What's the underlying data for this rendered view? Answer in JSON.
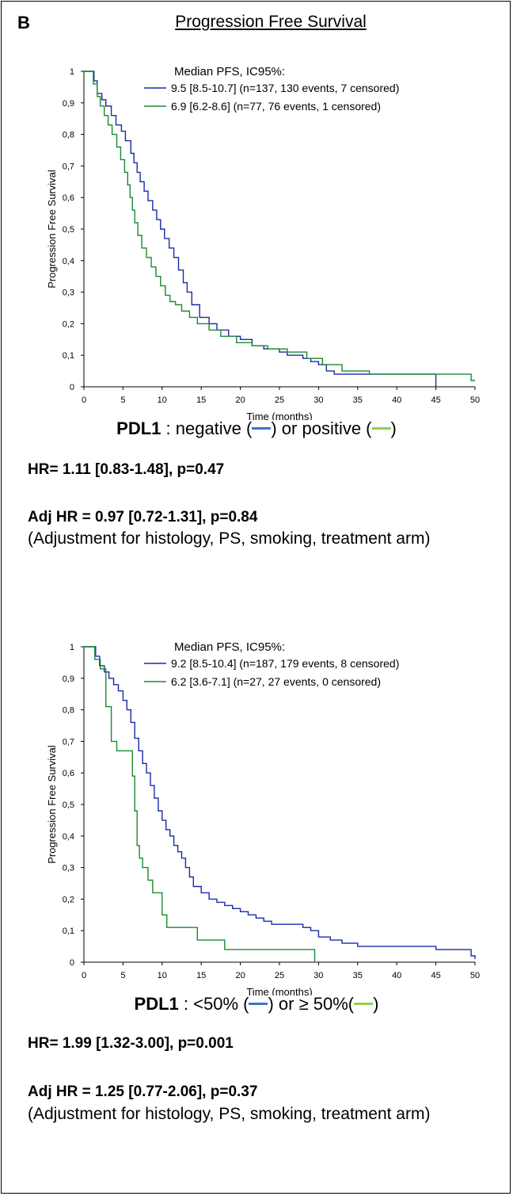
{
  "panel_letter": "B",
  "title": "Progression Free Survival",
  "chart_data": [
    {
      "type": "line",
      "legend_title": "Median PFS, IC95%:",
      "xlabel": "Time (months)",
      "ylabel": "Progression Free Survival",
      "xlim": [
        0,
        50
      ],
      "ylim": [
        0,
        1
      ],
      "x_ticks": [
        "0",
        "5",
        "10",
        "15",
        "20",
        "25",
        "30",
        "35",
        "40",
        "45",
        "50"
      ],
      "y_ticks": [
        "0",
        "0,1",
        "0,2",
        "0,3",
        "0,4",
        "0,5",
        "0,6",
        "0,7",
        "0,8",
        "0,9",
        "1"
      ],
      "legend_placement": "top-right",
      "series": [
        {
          "name": "9.5 [8.5-10.7] (n=137, 130 events, 7 censored)",
          "color": "#1c2aa6",
          "x": [
            0,
            1.3,
            1.7,
            2.3,
            2.8,
            3.5,
            4.1,
            4.8,
            5.3,
            6.0,
            6.4,
            6.8,
            7.2,
            7.7,
            8.2,
            8.8,
            9.3,
            9.8,
            10.3,
            10.9,
            11.5,
            12.1,
            12.7,
            13.2,
            13.8,
            14.8,
            16.0,
            17.0,
            18.5,
            20.0,
            21.5,
            23.0,
            25.0,
            26.0,
            28.0,
            29.0,
            30.0,
            31.0,
            32.0,
            35.0,
            40.0,
            45.0,
            45.0
          ],
          "y": [
            1.0,
            0.97,
            0.93,
            0.91,
            0.89,
            0.86,
            0.83,
            0.81,
            0.78,
            0.74,
            0.71,
            0.68,
            0.65,
            0.62,
            0.59,
            0.56,
            0.53,
            0.5,
            0.47,
            0.44,
            0.41,
            0.37,
            0.33,
            0.3,
            0.26,
            0.22,
            0.2,
            0.18,
            0.16,
            0.15,
            0.13,
            0.12,
            0.11,
            0.1,
            0.09,
            0.08,
            0.07,
            0.05,
            0.04,
            0.04,
            0.04,
            0.04,
            0.0
          ]
        },
        {
          "name": "6.9 [6.2-8.6] (n=77, 76 events, 1 censored)",
          "color": "#1b8a2f",
          "x": [
            0,
            1.2,
            1.7,
            2.1,
            2.6,
            3.1,
            3.6,
            4.2,
            4.7,
            5.2,
            5.6,
            5.9,
            6.2,
            6.5,
            6.9,
            7.4,
            8.0,
            8.6,
            9.2,
            9.8,
            10.4,
            11.0,
            11.7,
            12.5,
            13.5,
            14.5,
            16.0,
            17.5,
            19.5,
            21.5,
            23.5,
            26.0,
            28.5,
            30.5,
            33.0,
            36.5,
            40.0,
            45.0,
            49.5,
            50.0
          ],
          "y": [
            1.0,
            0.96,
            0.92,
            0.89,
            0.86,
            0.83,
            0.8,
            0.76,
            0.72,
            0.68,
            0.64,
            0.6,
            0.56,
            0.52,
            0.48,
            0.44,
            0.41,
            0.38,
            0.35,
            0.32,
            0.29,
            0.27,
            0.26,
            0.24,
            0.22,
            0.2,
            0.18,
            0.16,
            0.14,
            0.13,
            0.12,
            0.11,
            0.09,
            0.07,
            0.05,
            0.04,
            0.04,
            0.04,
            0.02,
            0.02
          ]
        }
      ]
    },
    {
      "type": "line",
      "legend_title": "Median PFS, IC95%:",
      "xlabel": "Time (months)",
      "ylabel": "Progression Free Survival",
      "xlim": [
        0,
        50
      ],
      "ylim": [
        0,
        1
      ],
      "x_ticks": [
        "0",
        "5",
        "10",
        "15",
        "20",
        "25",
        "30",
        "35",
        "40",
        "45",
        "50"
      ],
      "y_ticks": [
        "0",
        "0,1",
        "0,2",
        "0,3",
        "0,4",
        "0,5",
        "0,6",
        "0,7",
        "0,8",
        "0,9",
        "1"
      ],
      "legend_placement": "top-right",
      "series": [
        {
          "name": "9.2 [8.5-10.4] (n=187, 179 events, 8 censored)",
          "color": "#1c2aa6",
          "x": [
            0,
            1.5,
            2.0,
            2.6,
            3.2,
            3.8,
            4.4,
            5.0,
            5.5,
            6.0,
            6.5,
            7.0,
            7.5,
            8.0,
            8.5,
            9.0,
            9.5,
            10.0,
            10.5,
            11.0,
            11.5,
            12.0,
            12.5,
            13.0,
            13.5,
            14.0,
            15.0,
            16.0,
            17.0,
            18.0,
            19.0,
            20.0,
            21.0,
            22.0,
            23.0,
            24.0,
            26.0,
            28.0,
            29.0,
            30.0,
            31.5,
            33.0,
            35.0,
            38.0,
            40.0,
            45.0,
            49.5,
            50.0
          ],
          "y": [
            1.0,
            0.97,
            0.94,
            0.92,
            0.9,
            0.88,
            0.86,
            0.83,
            0.8,
            0.76,
            0.71,
            0.67,
            0.63,
            0.6,
            0.56,
            0.52,
            0.48,
            0.45,
            0.42,
            0.4,
            0.37,
            0.35,
            0.33,
            0.3,
            0.27,
            0.24,
            0.22,
            0.2,
            0.19,
            0.18,
            0.17,
            0.16,
            0.15,
            0.14,
            0.13,
            0.12,
            0.12,
            0.11,
            0.1,
            0.08,
            0.07,
            0.06,
            0.05,
            0.05,
            0.05,
            0.04,
            0.02,
            0.01
          ]
        },
        {
          "name": "6.2 [3.6-7.1] (n=27, 27 events, 0 censored)",
          "color": "#1b8a2f",
          "x": [
            0,
            1.4,
            2.1,
            2.8,
            3.5,
            4.2,
            6.2,
            6.5,
            6.8,
            7.1,
            7.5,
            8.2,
            8.8,
            10.0,
            10.6,
            11.5,
            14.5,
            18.0,
            29.5,
            29.5
          ],
          "y": [
            1.0,
            0.96,
            0.93,
            0.81,
            0.7,
            0.67,
            0.59,
            0.48,
            0.37,
            0.33,
            0.3,
            0.26,
            0.22,
            0.15,
            0.11,
            0.11,
            0.07,
            0.04,
            0.04,
            0.0
          ]
        }
      ]
    }
  ],
  "captions": [
    {
      "label": "PDL1",
      "text_1": " : negative (",
      "text_2": ") or positive (",
      "text_3": ")",
      "hr": "HR= 1.11 [0.83-1.48], p=0.47",
      "adj_hr": "Adj HR = 0.97 [0.72-1.31], p=0.84",
      "note": "(Adjustment for histology, PS, smoking, treatment arm)"
    },
    {
      "label": "PDL1",
      "text_1": " : <50% (",
      "text_2": ") or ≥ 50%(",
      "text_3": ")",
      "hr": "HR= 1.99 [1.32-3.00], p=0.001",
      "adj_hr": "Adj HR = 1.25 [0.77-2.06], p=0.37",
      "note": "(Adjustment for histology, PS, smoking, treatment arm)"
    }
  ],
  "swatch_colors": {
    "negative": "#4472c4",
    "positive": "#92d050"
  }
}
